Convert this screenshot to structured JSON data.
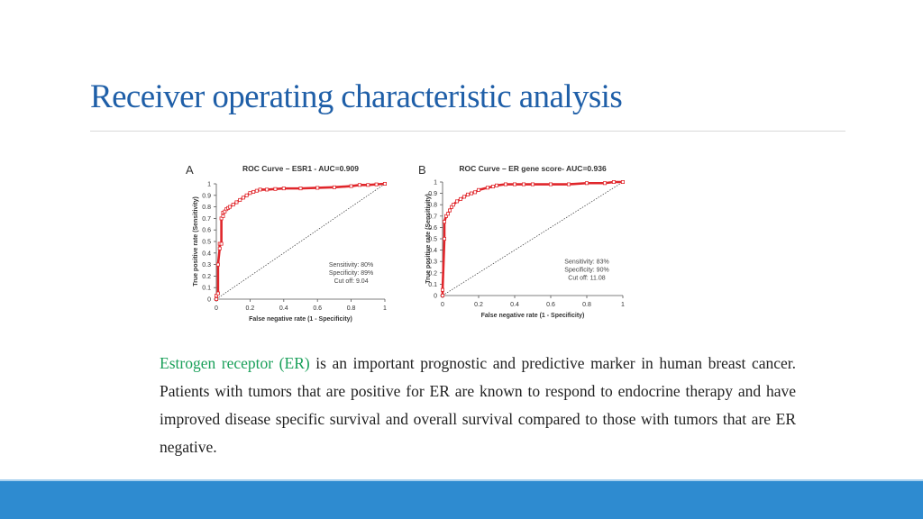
{
  "slide": {
    "title": "Receiver operating characteristic analysis",
    "body_highlight": "Estrogen receptor (ER)",
    "body_rest": " is an important prognostic and predictive marker in human breast cancer. Patients with tumors that are positive for ER are known to respond to endocrine therapy and have improved disease specific survival and overall survival compared to those with tumors that are ER negative."
  },
  "colors": {
    "title": "#1f5fa8",
    "highlight": "#1aa05a",
    "footer": "#2e8bd0",
    "roc_curve": "#e0262b"
  },
  "chart_data": [
    {
      "type": "line",
      "panel": "A",
      "title": "ROC Curve – ESR1 - AUC=0.909",
      "xlabel": "False negative rate (1 - Specificity)",
      "ylabel": "True positive rate (Sensitivity)",
      "xlim": [
        0,
        1
      ],
      "ylim": [
        0,
        1
      ],
      "xticks": [
        0,
        0.2,
        0.4,
        0.6,
        0.8,
        1
      ],
      "yticks": [
        0,
        0.1,
        0.2,
        0.3,
        0.4,
        0.5,
        0.6,
        0.7,
        0.8,
        0.9,
        1
      ],
      "grid": false,
      "annotations": [
        "Sensitivity: 80%",
        "Specificity: 89%",
        "Cut off: 9.04"
      ],
      "series": [
        {
          "x": [
            0,
            0,
            0.01,
            0.01,
            0.02,
            0.02,
            0.03,
            0.03,
            0.04,
            0.04,
            0.05,
            0.06,
            0.07,
            0.08,
            0.1,
            0.12,
            0.14,
            0.16,
            0.18,
            0.2,
            0.22,
            0.24,
            0.26,
            0.3,
            0.35,
            0.4,
            0.5,
            0.6,
            0.7,
            0.8,
            0.85,
            0.9,
            0.95,
            1
          ],
          "y": [
            0,
            0.03,
            0.05,
            0.3,
            0.44,
            0.48,
            0.48,
            0.7,
            0.72,
            0.75,
            0.76,
            0.78,
            0.79,
            0.8,
            0.82,
            0.84,
            0.86,
            0.88,
            0.9,
            0.92,
            0.93,
            0.94,
            0.95,
            0.95,
            0.955,
            0.96,
            0.96,
            0.965,
            0.97,
            0.98,
            0.99,
            0.99,
            0.995,
            1
          ]
        },
        {
          "x": [
            0,
            1
          ],
          "y": [
            0,
            1
          ]
        }
      ]
    },
    {
      "type": "line",
      "panel": "B",
      "title": "ROC Curve – ER gene score- AUC=0.936",
      "xlabel": "False negative rate (1 - Specificity)",
      "ylabel": "True positive rate (Sensitivity)",
      "xlim": [
        0,
        1
      ],
      "ylim": [
        0,
        1
      ],
      "xticks": [
        0,
        0.2,
        0.4,
        0.6,
        0.8,
        1
      ],
      "yticks": [
        0,
        0.1,
        0.2,
        0.3,
        0.4,
        0.5,
        0.6,
        0.7,
        0.8,
        0.9,
        1
      ],
      "grid": false,
      "annotations": [
        "Sensitivity: 83%",
        "Specificity: 90%",
        "Cut off: 11.08"
      ],
      "series": [
        {
          "x": [
            0,
            0,
            0.01,
            0.01,
            0.02,
            0.03,
            0.04,
            0.05,
            0.06,
            0.08,
            0.1,
            0.12,
            0.14,
            0.16,
            0.18,
            0.2,
            0.25,
            0.28,
            0.3,
            0.35,
            0.4,
            0.45,
            0.5,
            0.6,
            0.7,
            0.8,
            0.9,
            0.95,
            1
          ],
          "y": [
            0,
            0.05,
            0.5,
            0.65,
            0.7,
            0.72,
            0.75,
            0.78,
            0.8,
            0.83,
            0.85,
            0.87,
            0.89,
            0.9,
            0.91,
            0.93,
            0.95,
            0.96,
            0.97,
            0.98,
            0.98,
            0.98,
            0.98,
            0.98,
            0.98,
            0.99,
            0.99,
            1,
            1
          ]
        },
        {
          "x": [
            0,
            1
          ],
          "y": [
            0,
            1
          ]
        }
      ]
    }
  ]
}
